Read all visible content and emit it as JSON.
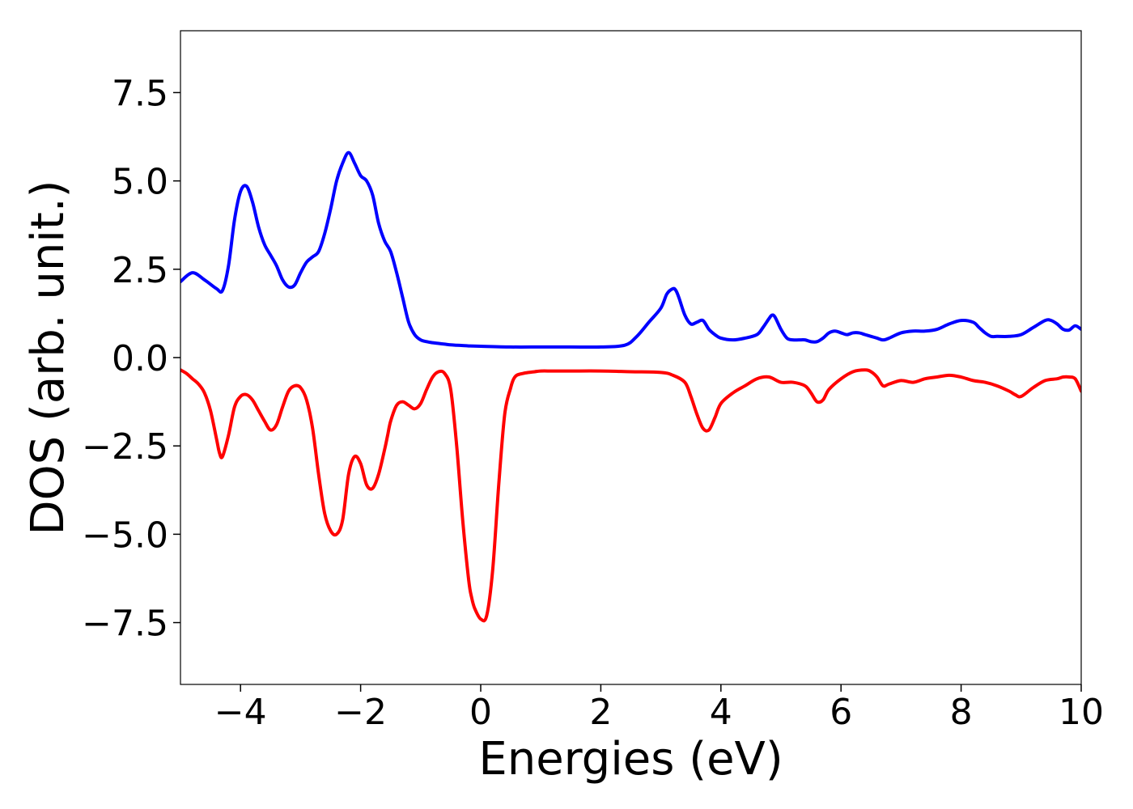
{
  "chart_data": {
    "type": "line",
    "title": "",
    "xlabel": "Energies (eV)",
    "ylabel": "DOS (arb. unit.)",
    "xlim": [
      -5,
      10
    ],
    "ylim": [
      -9.25,
      9.25
    ],
    "xticks": [
      -4,
      -2,
      0,
      2,
      4,
      6,
      8,
      10
    ],
    "xtick_labels": [
      "−4",
      "−2",
      "0",
      "2",
      "4",
      "6",
      "8",
      "10"
    ],
    "yticks": [
      -7.5,
      -5.0,
      -2.5,
      0.0,
      2.5,
      5.0,
      7.5
    ],
    "ytick_labels": [
      "−7.5",
      "−5.0",
      "−2.5",
      "0.0",
      "2.5",
      "5.0",
      "7.5"
    ],
    "grid": false,
    "legend": "none",
    "series": [
      {
        "color": "#0000ff",
        "x": [
          -5.0,
          -4.8,
          -4.6,
          -4.4,
          -4.3,
          -4.2,
          -4.1,
          -4.0,
          -3.9,
          -3.8,
          -3.7,
          -3.6,
          -3.5,
          -3.4,
          -3.3,
          -3.2,
          -3.1,
          -3.0,
          -2.9,
          -2.8,
          -2.7,
          -2.6,
          -2.5,
          -2.4,
          -2.3,
          -2.2,
          -2.1,
          -2.0,
          -1.9,
          -1.8,
          -1.7,
          -1.6,
          -1.5,
          -1.4,
          -1.3,
          -1.2,
          -1.1,
          -1.0,
          -0.9,
          -0.8,
          -0.7,
          -0.6,
          -0.5,
          -0.4,
          -0.3,
          -0.2,
          0.0,
          0.5,
          1.0,
          1.5,
          2.0,
          2.4,
          2.6,
          2.8,
          3.0,
          3.1,
          3.2,
          3.25,
          3.3,
          3.4,
          3.5,
          3.6,
          3.7,
          3.8,
          3.9,
          4.0,
          4.2,
          4.4,
          4.6,
          4.7,
          4.8,
          4.85,
          4.9,
          5.0,
          5.1,
          5.2,
          5.3,
          5.4,
          5.5,
          5.6,
          5.7,
          5.8,
          5.9,
          6.0,
          6.1,
          6.2,
          6.3,
          6.4,
          6.5,
          6.6,
          6.7,
          6.8,
          7.0,
          7.2,
          7.4,
          7.6,
          7.8,
          8.0,
          8.2,
          8.3,
          8.4,
          8.5,
          8.6,
          8.8,
          9.0,
          9.2,
          9.4,
          9.5,
          9.6,
          9.7,
          9.8,
          9.9,
          10.0
        ],
        "y": [
          2.15,
          2.4,
          2.2,
          1.95,
          1.9,
          2.6,
          3.9,
          4.7,
          4.85,
          4.4,
          3.7,
          3.2,
          2.9,
          2.6,
          2.2,
          2.0,
          2.05,
          2.4,
          2.7,
          2.85,
          3.0,
          3.5,
          4.2,
          5.0,
          5.5,
          5.8,
          5.5,
          5.15,
          5.0,
          4.6,
          3.8,
          3.3,
          3.0,
          2.4,
          1.7,
          1.0,
          0.65,
          0.5,
          0.45,
          0.42,
          0.4,
          0.38,
          0.36,
          0.35,
          0.34,
          0.33,
          0.32,
          0.3,
          0.3,
          0.3,
          0.3,
          0.35,
          0.6,
          1.0,
          1.4,
          1.8,
          1.95,
          1.9,
          1.7,
          1.2,
          0.95,
          1.0,
          1.05,
          0.8,
          0.65,
          0.55,
          0.5,
          0.55,
          0.65,
          0.85,
          1.1,
          1.2,
          1.15,
          0.8,
          0.55,
          0.5,
          0.5,
          0.5,
          0.45,
          0.45,
          0.55,
          0.7,
          0.75,
          0.7,
          0.65,
          0.7,
          0.7,
          0.65,
          0.6,
          0.55,
          0.5,
          0.55,
          0.7,
          0.75,
          0.75,
          0.8,
          0.95,
          1.05,
          1.0,
          0.85,
          0.7,
          0.6,
          0.6,
          0.6,
          0.65,
          0.85,
          1.05,
          1.05,
          0.95,
          0.8,
          0.78,
          0.9,
          0.8
        ]
      },
      {
        "color": "#ff0000",
        "x": [
          -5.0,
          -4.9,
          -4.8,
          -4.7,
          -4.6,
          -4.5,
          -4.4,
          -4.35,
          -4.3,
          -4.2,
          -4.1,
          -4.0,
          -3.9,
          -3.8,
          -3.7,
          -3.6,
          -3.5,
          -3.4,
          -3.3,
          -3.2,
          -3.1,
          -3.0,
          -2.9,
          -2.8,
          -2.7,
          -2.6,
          -2.5,
          -2.4,
          -2.3,
          -2.2,
          -2.1,
          -2.0,
          -1.9,
          -1.8,
          -1.7,
          -1.6,
          -1.55,
          -1.5,
          -1.4,
          -1.3,
          -1.2,
          -1.1,
          -1.0,
          -0.9,
          -0.8,
          -0.7,
          -0.6,
          -0.5,
          -0.4,
          -0.3,
          -0.2,
          -0.15,
          -0.1,
          0.0,
          0.1,
          0.2,
          0.3,
          0.4,
          0.5,
          0.55,
          0.6,
          0.7,
          0.8,
          0.9,
          1.0,
          1.2,
          1.5,
          2.0,
          2.5,
          3.0,
          3.2,
          3.4,
          3.5,
          3.6,
          3.7,
          3.8,
          3.9,
          4.0,
          4.2,
          4.4,
          4.6,
          4.8,
          5.0,
          5.2,
          5.4,
          5.5,
          5.6,
          5.7,
          5.8,
          6.0,
          6.2,
          6.4,
          6.5,
          6.6,
          6.7,
          6.8,
          7.0,
          7.2,
          7.4,
          7.6,
          7.8,
          8.0,
          8.2,
          8.4,
          8.6,
          8.8,
          8.9,
          9.0,
          9.2,
          9.4,
          9.6,
          9.7,
          9.8,
          9.9,
          10.0
        ],
        "y": [
          -0.35,
          -0.45,
          -0.6,
          -0.75,
          -1.0,
          -1.5,
          -2.3,
          -2.7,
          -2.8,
          -2.2,
          -1.4,
          -1.1,
          -1.05,
          -1.2,
          -1.5,
          -1.8,
          -2.05,
          -1.9,
          -1.4,
          -0.95,
          -0.8,
          -0.85,
          -1.2,
          -2.0,
          -3.3,
          -4.4,
          -4.9,
          -5.0,
          -4.6,
          -3.3,
          -2.8,
          -3.0,
          -3.6,
          -3.7,
          -3.3,
          -2.6,
          -2.2,
          -1.8,
          -1.35,
          -1.25,
          -1.35,
          -1.45,
          -1.3,
          -0.9,
          -0.55,
          -0.4,
          -0.45,
          -0.9,
          -2.5,
          -4.6,
          -6.3,
          -6.8,
          -7.1,
          -7.4,
          -7.3,
          -6.0,
          -3.6,
          -1.6,
          -0.85,
          -0.6,
          -0.5,
          -0.45,
          -0.42,
          -0.4,
          -0.38,
          -0.38,
          -0.38,
          -0.38,
          -0.4,
          -0.42,
          -0.5,
          -0.7,
          -1.1,
          -1.6,
          -2.0,
          -2.05,
          -1.7,
          -1.3,
          -1.0,
          -0.8,
          -0.6,
          -0.55,
          -0.7,
          -0.7,
          -0.8,
          -1.0,
          -1.25,
          -1.2,
          -0.9,
          -0.6,
          -0.4,
          -0.35,
          -0.4,
          -0.55,
          -0.8,
          -0.75,
          -0.65,
          -0.7,
          -0.6,
          -0.55,
          -0.5,
          -0.55,
          -0.65,
          -0.7,
          -0.8,
          -0.95,
          -1.05,
          -1.1,
          -0.85,
          -0.65,
          -0.6,
          -0.55,
          -0.55,
          -0.6,
          -0.95
        ]
      }
    ]
  }
}
